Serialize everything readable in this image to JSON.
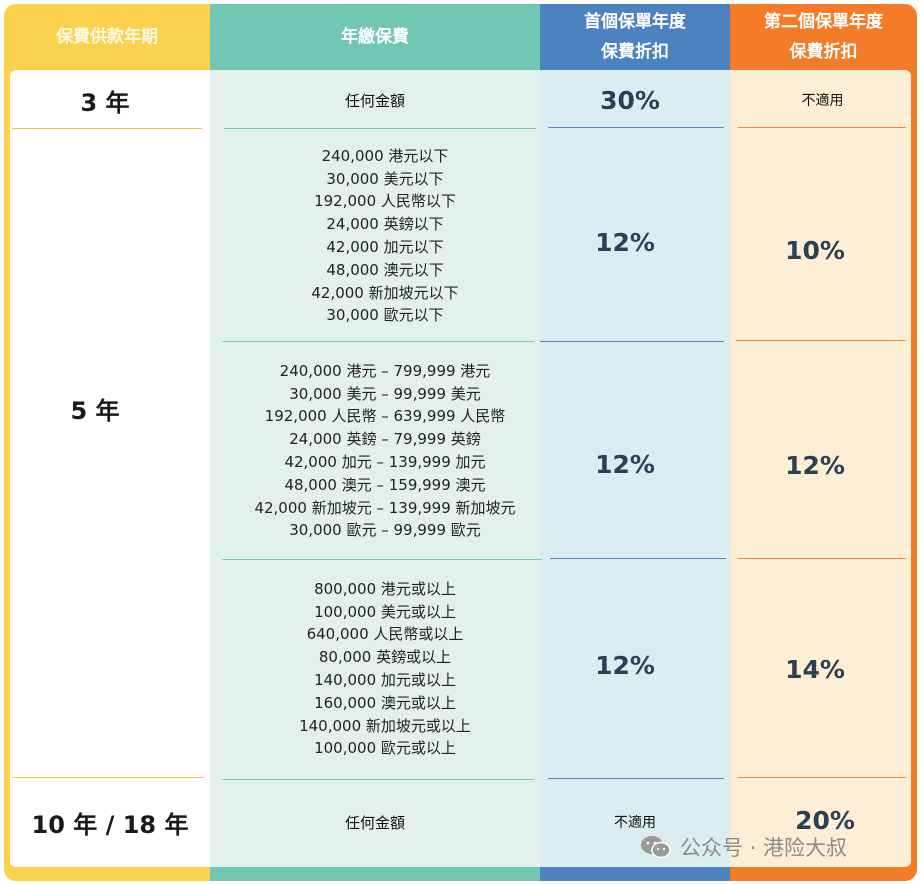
{
  "headers": {
    "term": "保費供款年期",
    "premium": "年繳保費",
    "first_year_line1": "首個保單年度",
    "first_year_line2": "保費折扣",
    "second_year_line1": "第二個保單年度",
    "second_year_line2": "保費折扣"
  },
  "rows": {
    "r3": {
      "term": "3 年",
      "premium": "任何金額",
      "first": "30%",
      "second": "不適用"
    },
    "r5": {
      "term": "5 年",
      "tiers": [
        {
          "amounts": [
            "240,000 港元以下",
            "30,000 美元以下",
            "192,000 人民幣以下",
            "24,000 英鎊以下",
            "42,000 加元以下",
            "48,000 澳元以下",
            "42,000 新加坡元以下",
            "30,000 歐元以下"
          ],
          "first": "12%",
          "second": "10%"
        },
        {
          "amounts": [
            "240,000 港元 – 799,999 港元",
            "30,000 美元 – 99,999 美元",
            "192,000 人民幣 – 639,999 人民幣",
            "24,000 英鎊 – 79,999 英鎊",
            "42,000 加元 – 139,999 加元",
            "48,000 澳元 – 159,999 澳元",
            "42,000 新加坡元 – 139,999 新加坡元",
            "30,000 歐元 – 99,999 歐元"
          ],
          "first": "12%",
          "second": "12%"
        },
        {
          "amounts": [
            "800,000 港元或以上",
            "100,000 美元或以上",
            "640,000 人民幣或以上",
            "80,000 英鎊或以上",
            "140,000 加元或以上",
            "160,000 澳元或以上",
            "140,000 新加坡元或以上",
            "100,000 歐元或以上"
          ],
          "first": "12%",
          "second": "14%"
        }
      ]
    },
    "r10": {
      "term": "10 年 / 18 年",
      "premium": "任何金額",
      "first": "不適用",
      "second": "20%"
    }
  },
  "watermark": {
    "text": "公众号 · 港险大叔",
    "icon": "wechat-icon"
  }
}
